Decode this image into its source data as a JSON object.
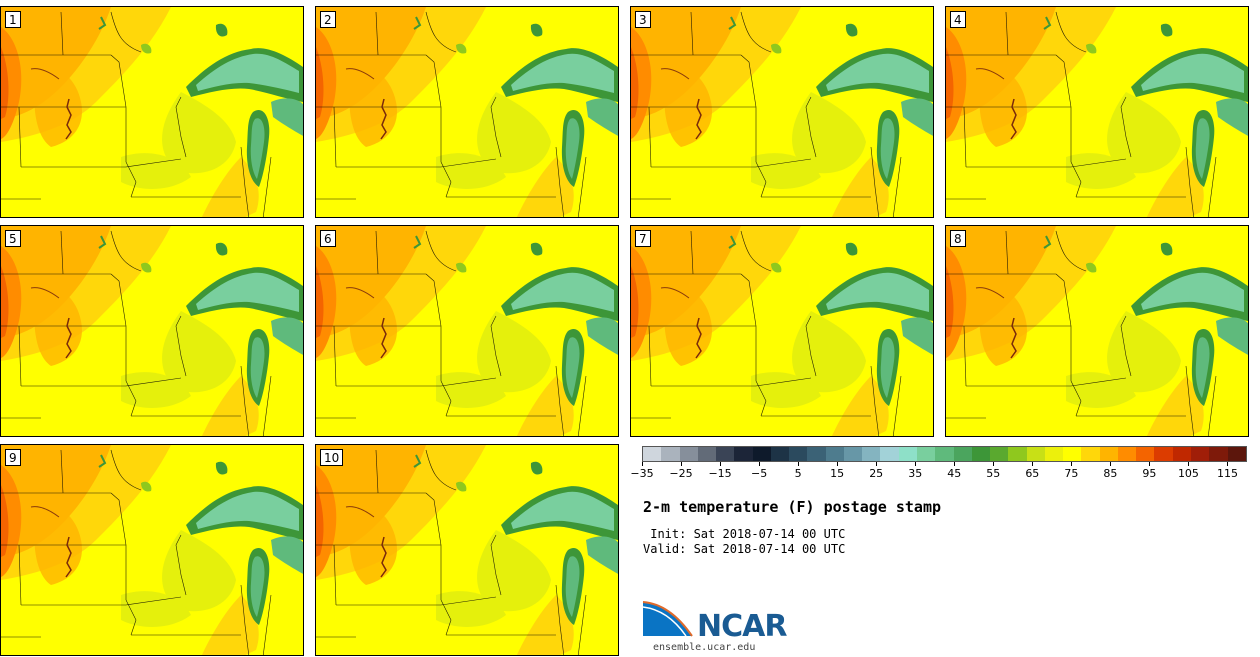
{
  "panels": [
    "1",
    "2",
    "3",
    "4",
    "5",
    "6",
    "7",
    "8",
    "9",
    "10"
  ],
  "colorbar": {
    "colors": [
      "#cfd6dd",
      "#aab3bd",
      "#868f9b",
      "#626b78",
      "#3a4456",
      "#1c2538",
      "#0e1a2b",
      "#1d3346",
      "#2b4a5e",
      "#3b6276",
      "#4e7c8e",
      "#6797a7",
      "#84b4c0",
      "#a2d2d8",
      "#8ee0c8",
      "#79cf9e",
      "#5fba7c",
      "#4ba55e",
      "#3d9638",
      "#5aa92f",
      "#8fc81e",
      "#c8e016",
      "#ecf00c",
      "#ffff00",
      "#ffd70a",
      "#ffb400",
      "#ff8c00",
      "#f46400",
      "#dc3c00",
      "#c02800",
      "#a01e08",
      "#7e1a0a",
      "#5c160c"
    ],
    "tick_labels": [
      "-35",
      "-25",
      "-15",
      "-5",
      "5",
      "15",
      "25",
      "35",
      "45",
      "55",
      "65",
      "75",
      "85",
      "95",
      "105",
      "115"
    ],
    "tick_values": [
      -35,
      -25,
      -15,
      -5,
      5,
      15,
      25,
      35,
      45,
      55,
      65,
      75,
      85,
      95,
      105,
      115
    ],
    "min": -35,
    "max": 120
  },
  "title": "2-m temperature (F) postage stamp",
  "init": " Init: Sat 2018-07-14 00 UTC",
  "valid": "Valid: Sat 2018-07-14 00 UTC",
  "logo_text": "NCAR",
  "site": "ensemble.ucar.edu"
}
